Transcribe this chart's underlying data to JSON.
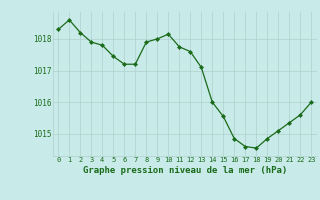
{
  "x": [
    0,
    1,
    2,
    3,
    4,
    5,
    6,
    7,
    8,
    9,
    10,
    11,
    12,
    13,
    14,
    15,
    16,
    17,
    18,
    19,
    20,
    21,
    22,
    23
  ],
  "y": [
    1018.3,
    1018.6,
    1018.2,
    1017.9,
    1017.8,
    1017.45,
    1017.2,
    1017.2,
    1017.9,
    1018.0,
    1018.15,
    1017.75,
    1017.6,
    1017.1,
    1016.0,
    1015.55,
    1014.85,
    1014.6,
    1014.55,
    1014.85,
    1015.1,
    1015.35,
    1015.6,
    1016.0
  ],
  "line_color": "#1a6b1a",
  "marker_color": "#1a6b1a",
  "background_color": "#c8eae8",
  "grid_color": "#b0d0ce",
  "xlabel": "Graphe pression niveau de la mer (hPa)",
  "xlabel_color": "#1a6b1a",
  "tick_color": "#1a6b1a",
  "ylim": [
    1014.3,
    1018.85
  ],
  "yticks": [
    1015,
    1016,
    1017,
    1018
  ],
  "xticks": [
    0,
    1,
    2,
    3,
    4,
    5,
    6,
    7,
    8,
    9,
    10,
    11,
    12,
    13,
    14,
    15,
    16,
    17,
    18,
    19,
    20,
    21,
    22,
    23
  ],
  "figsize": [
    3.2,
    2.0
  ],
  "dpi": 100
}
